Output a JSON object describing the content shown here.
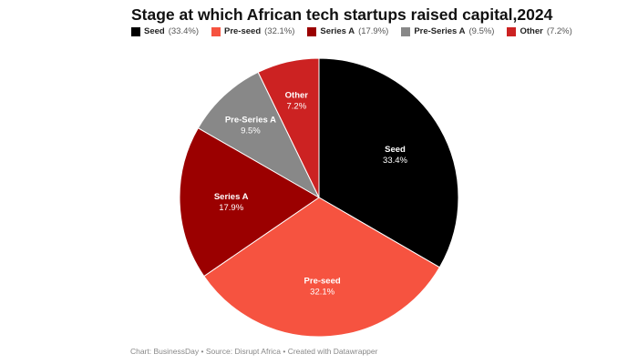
{
  "chart_data": {
    "type": "pie",
    "title": "Stage at which African tech startups raised capital,2024",
    "slices": [
      {
        "label": "Seed",
        "value": 33.4,
        "display": "33.4%",
        "color": "#000000",
        "text_color": "#ffffff"
      },
      {
        "label": "Pre-seed",
        "value": 32.1,
        "display": "32.1%",
        "color": "#f65340",
        "text_color": "#ffffff"
      },
      {
        "label": "Series A",
        "value": 17.9,
        "display": "17.9%",
        "color": "#9b0000",
        "text_color": "#ffffff"
      },
      {
        "label": "Pre-Series A",
        "value": 9.5,
        "display": "9.5%",
        "color": "#888888",
        "text_color": "#ffffff"
      },
      {
        "label": "Other",
        "value": 7.2,
        "display": "7.2%",
        "color": "#cc2222",
        "text_color": "#ffffff"
      }
    ],
    "legend": [
      {
        "label": "Seed",
        "pct": "(33.4%)"
      },
      {
        "label": "Pre-seed",
        "pct": "(32.1%)"
      },
      {
        "label": "Series A",
        "pct": "(17.9%)"
      },
      {
        "label": "Pre-Series A",
        "pct": "(9.5%)"
      },
      {
        "label": "Other",
        "pct": "(7.2%)"
      }
    ],
    "legend_placement": "top",
    "footer": "Chart: BusinessDay • Source: Disrupt Africa • Created with Datawrapper"
  }
}
